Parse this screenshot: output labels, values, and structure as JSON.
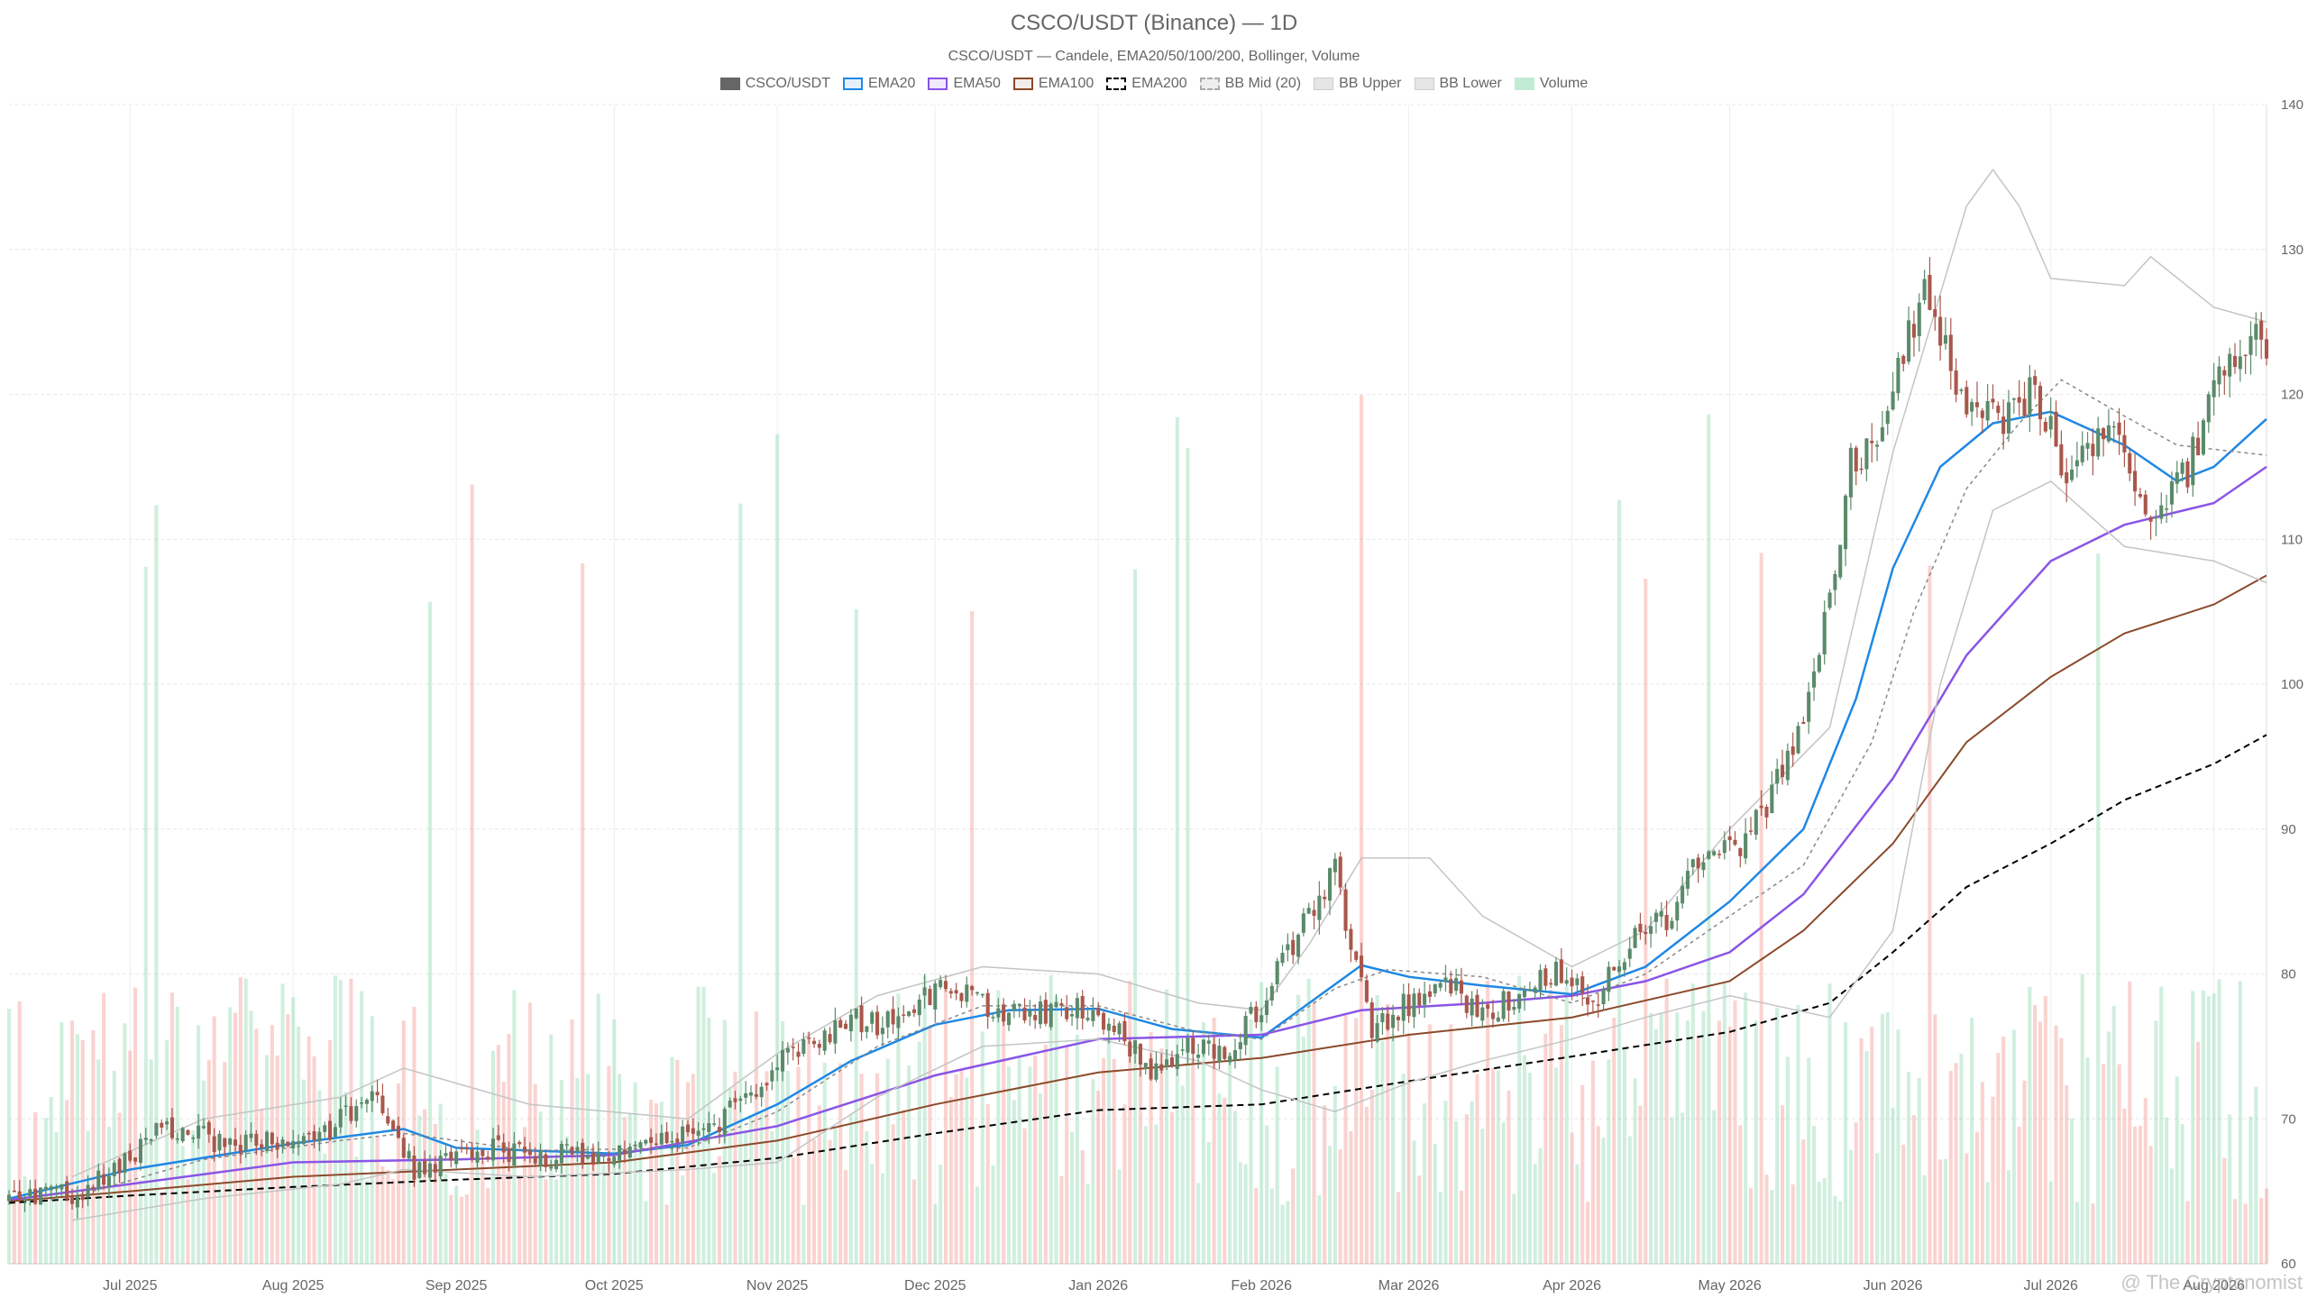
{
  "chart_data": {
    "type": "candlestick",
    "title": "CSCO/USDT (Binance) — 1D",
    "subtitle": "CSCO/USDT — Candele, EMA20/50/100/200, Bollinger, Volume",
    "watermark": "@ The Cryptonomist",
    "ylim": [
      60,
      140
    ],
    "yticks": [
      60,
      70,
      80,
      90,
      100,
      110,
      120,
      130,
      140
    ],
    "x_range": [
      "2025-06-08",
      "2026-08-11"
    ],
    "x_tick_labels": [
      {
        "date": "2025-07-01",
        "label": "Jul 2025"
      },
      {
        "date": "2025-08-01",
        "label": "Aug 2025"
      },
      {
        "date": "2025-09-01",
        "label": "Sep 2025"
      },
      {
        "date": "2025-10-01",
        "label": "Oct 2025"
      },
      {
        "date": "2025-11-01",
        "label": "Nov 2025"
      },
      {
        "date": "2025-12-01",
        "label": "Dec 2025"
      },
      {
        "date": "2026-01-01",
        "label": "Jan 2026"
      },
      {
        "date": "2026-02-01",
        "label": "Feb 2026"
      },
      {
        "date": "2026-03-01",
        "label": "Mar 2026"
      },
      {
        "date": "2026-04-01",
        "label": "Apr 2026"
      },
      {
        "date": "2026-05-01",
        "label": "May 2026"
      },
      {
        "date": "2026-06-01",
        "label": "Jun 2026"
      },
      {
        "date": "2026-07-01",
        "label": "Jul 2026"
      },
      {
        "date": "2026-08-01",
        "label": "Aug 2026"
      }
    ],
    "legend": [
      {
        "name": "CSCO/USDT",
        "swatch": "solid-dark"
      },
      {
        "name": "EMA20",
        "swatch": "outline-blue"
      },
      {
        "name": "EMA50",
        "swatch": "outline-purple"
      },
      {
        "name": "EMA100",
        "swatch": "outline-brown"
      },
      {
        "name": "EMA200",
        "swatch": "dashed-black"
      },
      {
        "name": "BB Mid (20)",
        "swatch": "dashed-grey"
      },
      {
        "name": "BB Upper",
        "swatch": "grey"
      },
      {
        "name": "BB Lower",
        "swatch": "grey"
      },
      {
        "name": "Volume",
        "swatch": "green"
      }
    ],
    "close_series": [
      [
        "2025-06-08",
        64.5
      ],
      [
        "2025-06-15",
        65.0
      ],
      [
        "2025-06-22",
        64.8
      ],
      [
        "2025-06-29",
        67.0
      ],
      [
        "2025-07-06",
        69.0
      ],
      [
        "2025-07-13",
        69.0
      ],
      [
        "2025-07-20",
        68.0
      ],
      [
        "2025-07-27",
        68.5
      ],
      [
        "2025-08-03",
        68.0
      ],
      [
        "2025-08-10",
        70.0
      ],
      [
        "2025-08-17",
        72.0
      ],
      [
        "2025-08-24",
        66.5
      ],
      [
        "2025-08-31",
        67.0
      ],
      [
        "2025-09-07",
        68.0
      ],
      [
        "2025-09-14",
        67.5
      ],
      [
        "2025-09-21",
        67.5
      ],
      [
        "2025-09-28",
        67.0
      ],
      [
        "2025-10-05",
        68.0
      ],
      [
        "2025-10-12",
        69.0
      ],
      [
        "2025-10-19",
        69.0
      ],
      [
        "2025-10-26",
        71.5
      ],
      [
        "2025-11-02",
        74.0
      ],
      [
        "2025-11-09",
        75.0
      ],
      [
        "2025-11-16",
        77.0
      ],
      [
        "2025-11-23",
        76.5
      ],
      [
        "2025-11-30",
        78.5
      ],
      [
        "2025-12-07",
        79.0
      ],
      [
        "2025-12-14",
        77.0
      ],
      [
        "2025-12-21",
        77.5
      ],
      [
        "2025-12-28",
        77.5
      ],
      [
        "2026-01-04",
        76.5
      ],
      [
        "2026-01-11",
        73.5
      ],
      [
        "2026-01-18",
        75.0
      ],
      [
        "2026-01-25",
        74.5
      ],
      [
        "2026-02-01",
        78.0
      ],
      [
        "2026-02-08",
        83.0
      ],
      [
        "2026-02-15",
        87.0
      ],
      [
        "2026-02-22",
        76.0
      ],
      [
        "2026-03-01",
        78.0
      ],
      [
        "2026-03-08",
        79.5
      ],
      [
        "2026-03-15",
        77.0
      ],
      [
        "2026-03-22",
        78.5
      ],
      [
        "2026-03-29",
        80.5
      ],
      [
        "2026-04-05",
        78.0
      ],
      [
        "2026-04-12",
        82.0
      ],
      [
        "2026-04-19",
        84.0
      ],
      [
        "2026-04-26",
        88.0
      ],
      [
        "2026-05-03",
        89.0
      ],
      [
        "2026-05-10",
        93.0
      ],
      [
        "2026-05-17",
        100.0
      ],
      [
        "2026-05-24",
        115.0
      ],
      [
        "2026-05-31",
        119.0
      ],
      [
        "2026-06-07",
        128.0
      ],
      [
        "2026-06-14",
        119.0
      ],
      [
        "2026-06-21",
        118.0
      ],
      [
        "2026-06-28",
        120.0
      ],
      [
        "2026-07-05",
        114.0
      ],
      [
        "2026-07-12",
        119.0
      ],
      [
        "2026-07-19",
        111.0
      ],
      [
        "2026-07-26",
        114.0
      ],
      [
        "2026-08-02",
        121.0
      ],
      [
        "2026-08-09",
        123.5
      ]
    ],
    "series": [
      {
        "name": "EMA20",
        "color": "#1e88e5",
        "values": [
          [
            "2025-06-08",
            64.5
          ],
          [
            "2025-07-01",
            66.5
          ],
          [
            "2025-08-01",
            68.3
          ],
          [
            "2025-08-22",
            69.3
          ],
          [
            "2025-09-01",
            68.0
          ],
          [
            "2025-10-01",
            67.6
          ],
          [
            "2025-10-15",
            68.2
          ],
          [
            "2025-11-01",
            71.0
          ],
          [
            "2025-11-15",
            74.0
          ],
          [
            "2025-12-01",
            76.5
          ],
          [
            "2025-12-15",
            77.5
          ],
          [
            "2026-01-01",
            77.6
          ],
          [
            "2026-01-15",
            76.2
          ],
          [
            "2026-02-01",
            75.6
          ],
          [
            "2026-02-12",
            78.5
          ],
          [
            "2026-02-20",
            80.6
          ],
          [
            "2026-03-01",
            79.8
          ],
          [
            "2026-03-15",
            79.2
          ],
          [
            "2026-04-01",
            78.6
          ],
          [
            "2026-04-15",
            80.5
          ],
          [
            "2026-05-01",
            85.0
          ],
          [
            "2026-05-15",
            90.0
          ],
          [
            "2026-05-25",
            99.0
          ],
          [
            "2026-06-01",
            108.0
          ],
          [
            "2026-06-10",
            115.0
          ],
          [
            "2026-06-20",
            118.0
          ],
          [
            "2026-07-01",
            118.8
          ],
          [
            "2026-07-15",
            116.5
          ],
          [
            "2026-07-25",
            114.0
          ],
          [
            "2026-08-01",
            115.0
          ],
          [
            "2026-08-11",
            118.3
          ]
        ]
      },
      {
        "name": "EMA50",
        "color": "#8a55e6",
        "values": [
          [
            "2025-06-08",
            64.4
          ],
          [
            "2025-07-01",
            65.5
          ],
          [
            "2025-08-01",
            67.0
          ],
          [
            "2025-09-01",
            67.2
          ],
          [
            "2025-10-01",
            67.5
          ],
          [
            "2025-11-01",
            69.5
          ],
          [
            "2025-12-01",
            73.0
          ],
          [
            "2026-01-01",
            75.5
          ],
          [
            "2026-02-01",
            75.8
          ],
          [
            "2026-02-20",
            77.5
          ],
          [
            "2026-03-15",
            78.0
          ],
          [
            "2026-04-01",
            78.5
          ],
          [
            "2026-04-15",
            79.5
          ],
          [
            "2026-05-01",
            81.5
          ],
          [
            "2026-05-15",
            85.5
          ],
          [
            "2026-06-01",
            93.5
          ],
          [
            "2026-06-15",
            102.0
          ],
          [
            "2026-07-01",
            108.5
          ],
          [
            "2026-07-15",
            111.0
          ],
          [
            "2026-08-01",
            112.5
          ],
          [
            "2026-08-11",
            115.0
          ]
        ]
      },
      {
        "name": "EMA100",
        "color": "#8b4a2b",
        "values": [
          [
            "2025-06-08",
            64.3
          ],
          [
            "2025-07-01",
            65.0
          ],
          [
            "2025-08-01",
            66.0
          ],
          [
            "2025-09-01",
            66.5
          ],
          [
            "2025-10-01",
            67.0
          ],
          [
            "2025-11-01",
            68.5
          ],
          [
            "2025-12-01",
            71.0
          ],
          [
            "2026-01-01",
            73.2
          ],
          [
            "2026-02-01",
            74.2
          ],
          [
            "2026-03-01",
            75.8
          ],
          [
            "2026-04-01",
            77.0
          ],
          [
            "2026-05-01",
            79.5
          ],
          [
            "2026-05-15",
            83.0
          ],
          [
            "2026-06-01",
            89.0
          ],
          [
            "2026-06-15",
            96.0
          ],
          [
            "2026-07-01",
            100.5
          ],
          [
            "2026-07-15",
            103.5
          ],
          [
            "2026-08-01",
            105.5
          ],
          [
            "2026-08-11",
            107.5
          ]
        ]
      },
      {
        "name": "EMA200",
        "color": "#000000",
        "dash": true,
        "values": [
          [
            "2025-06-08",
            64.2
          ],
          [
            "2025-07-01",
            64.7
          ],
          [
            "2025-08-01",
            65.3
          ],
          [
            "2025-09-01",
            65.8
          ],
          [
            "2025-10-01",
            66.2
          ],
          [
            "2025-11-01",
            67.3
          ],
          [
            "2025-12-01",
            69.0
          ],
          [
            "2026-01-01",
            70.6
          ],
          [
            "2026-02-01",
            71.0
          ],
          [
            "2026-03-01",
            72.6
          ],
          [
            "2026-04-01",
            74.3
          ],
          [
            "2026-05-01",
            76.0
          ],
          [
            "2026-05-20",
            78.0
          ],
          [
            "2026-06-01",
            81.5
          ],
          [
            "2026-06-15",
            86.0
          ],
          [
            "2026-07-01",
            89.0
          ],
          [
            "2026-07-15",
            92.0
          ],
          [
            "2026-08-01",
            94.5
          ],
          [
            "2026-08-11",
            96.5
          ]
        ]
      },
      {
        "name": "BB Mid (20)",
        "color": "#888888",
        "dash": true,
        "values": [
          [
            "2025-06-20",
            64.6
          ],
          [
            "2025-07-15",
            67.2
          ],
          [
            "2025-08-10",
            68.5
          ],
          [
            "2025-08-22",
            69.0
          ],
          [
            "2025-09-15",
            67.8
          ],
          [
            "2025-10-15",
            68.0
          ],
          [
            "2025-11-01",
            70.5
          ],
          [
            "2025-11-20",
            75.0
          ],
          [
            "2025-12-10",
            77.8
          ],
          [
            "2026-01-01",
            77.8
          ],
          [
            "2026-01-20",
            76.0
          ],
          [
            "2026-02-01",
            75.5
          ],
          [
            "2026-02-15",
            79.0
          ],
          [
            "2026-02-25",
            80.3
          ],
          [
            "2026-03-15",
            79.8
          ],
          [
            "2026-04-01",
            78.0
          ],
          [
            "2026-04-15",
            80.0
          ],
          [
            "2026-05-01",
            84.0
          ],
          [
            "2026-05-15",
            87.5
          ],
          [
            "2026-05-28",
            96.0
          ],
          [
            "2026-06-05",
            105.0
          ],
          [
            "2026-06-15",
            113.5
          ],
          [
            "2026-06-25",
            118.0
          ],
          [
            "2026-07-03",
            121.0
          ],
          [
            "2026-07-15",
            118.5
          ],
          [
            "2026-07-25",
            116.5
          ],
          [
            "2026-08-11",
            115.8
          ]
        ]
      },
      {
        "name": "BB Upper",
        "color": "#c4c4c4",
        "values": [
          [
            "2025-06-20",
            66.0
          ],
          [
            "2025-07-15",
            70.0
          ],
          [
            "2025-08-10",
            71.5
          ],
          [
            "2025-08-22",
            73.5
          ],
          [
            "2025-09-15",
            71.0
          ],
          [
            "2025-10-15",
            70.0
          ],
          [
            "2025-11-01",
            74.5
          ],
          [
            "2025-11-20",
            78.5
          ],
          [
            "2025-12-10",
            80.5
          ],
          [
            "2026-01-01",
            80.0
          ],
          [
            "2026-01-20",
            78.0
          ],
          [
            "2026-02-01",
            77.5
          ],
          [
            "2026-02-10",
            82.0
          ],
          [
            "2026-02-20",
            88.0
          ],
          [
            "2026-03-05",
            88.0
          ],
          [
            "2026-03-15",
            84.0
          ],
          [
            "2026-04-01",
            80.5
          ],
          [
            "2026-04-15",
            83.0
          ],
          [
            "2026-05-01",
            90.0
          ],
          [
            "2026-05-20",
            97.0
          ],
          [
            "2026-06-01",
            116.0
          ],
          [
            "2026-06-15",
            133.0
          ],
          [
            "2026-06-20",
            135.5
          ],
          [
            "2026-06-25",
            133.0
          ],
          [
            "2026-07-01",
            128.0
          ],
          [
            "2026-07-15",
            127.5
          ],
          [
            "2026-07-20",
            129.5
          ],
          [
            "2026-08-01",
            126.0
          ],
          [
            "2026-08-11",
            125.0
          ]
        ]
      },
      {
        "name": "BB Lower",
        "color": "#c4c4c4",
        "values": [
          [
            "2025-06-20",
            63.0
          ],
          [
            "2025-07-15",
            64.5
          ],
          [
            "2025-08-10",
            65.5
          ],
          [
            "2025-08-22",
            66.5
          ],
          [
            "2025-09-15",
            66.0
          ],
          [
            "2025-10-15",
            66.5
          ],
          [
            "2025-11-01",
            67.0
          ],
          [
            "2025-11-20",
            71.5
          ],
          [
            "2025-12-10",
            75.0
          ],
          [
            "2026-01-01",
            75.5
          ],
          [
            "2026-01-20",
            74.0
          ],
          [
            "2026-02-01",
            72.0
          ],
          [
            "2026-02-15",
            70.5
          ],
          [
            "2026-03-01",
            72.5
          ],
          [
            "2026-03-15",
            74.0
          ],
          [
            "2026-04-01",
            75.5
          ],
          [
            "2026-04-15",
            77.0
          ],
          [
            "2026-05-01",
            78.5
          ],
          [
            "2026-05-20",
            77.0
          ],
          [
            "2026-06-01",
            83.0
          ],
          [
            "2026-06-10",
            100.0
          ],
          [
            "2026-06-20",
            112.0
          ],
          [
            "2026-07-01",
            114.0
          ],
          [
            "2026-07-15",
            109.5
          ],
          [
            "2026-08-01",
            108.5
          ],
          [
            "2026-08-11",
            107.0
          ]
        ]
      }
    ],
    "candle_colors": {
      "up": "#5a8a6a",
      "down": "#a9574b"
    },
    "volume_colors": {
      "up": "rgba(120,210,160,0.35)",
      "down": "rgba(240,130,120,0.35)"
    },
    "volume_shown": "translucent bars along the bottom of the price panel"
  }
}
